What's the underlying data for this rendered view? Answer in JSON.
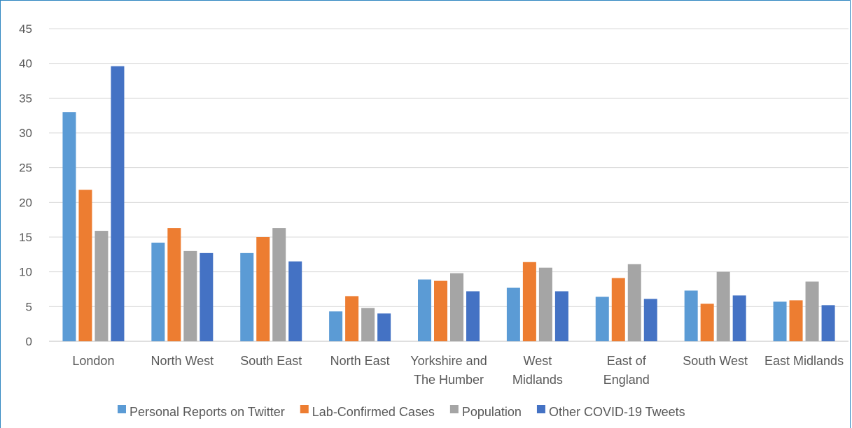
{
  "chart_data": {
    "type": "bar",
    "categories": [
      "London",
      "North West",
      "South East",
      "North East",
      "Yorkshire and The Humber",
      "West Midlands",
      "East of England",
      "South West",
      "East Midlands"
    ],
    "category_lines": [
      [
        "London"
      ],
      [
        "North West"
      ],
      [
        "South East"
      ],
      [
        "North East"
      ],
      [
        "Yorkshire and",
        "The Humber"
      ],
      [
        "West",
        "Midlands"
      ],
      [
        "East of",
        "England"
      ],
      [
        "South West"
      ],
      [
        "East Midlands"
      ]
    ],
    "series": [
      {
        "name": "Personal Reports on Twitter",
        "color": "#5b9bd5",
        "values": [
          33.0,
          14.2,
          12.7,
          4.3,
          8.9,
          7.7,
          6.4,
          7.3,
          5.7
        ]
      },
      {
        "name": "Lab-Confirmed Cases",
        "color": "#ed7d31",
        "values": [
          21.8,
          16.3,
          15.0,
          6.5,
          8.7,
          11.4,
          9.1,
          5.4,
          5.9
        ]
      },
      {
        "name": "Population",
        "color": "#a5a5a5",
        "values": [
          15.9,
          13.0,
          16.3,
          4.8,
          9.8,
          10.6,
          11.1,
          10.0,
          8.6
        ]
      },
      {
        "name": "Other COVID-19 Tweets",
        "color": "#4472c4",
        "values": [
          39.6,
          12.7,
          11.5,
          4.0,
          7.2,
          7.2,
          6.1,
          6.6,
          5.2
        ]
      }
    ],
    "y_ticks": [
      "0",
      "5",
      "10",
      "15",
      "20",
      "25",
      "30",
      "35",
      "40",
      "45"
    ],
    "ylim": [
      0,
      45
    ],
    "grid": true,
    "legend_position": "bottom",
    "title": "",
    "xlabel": "",
    "ylabel": ""
  }
}
